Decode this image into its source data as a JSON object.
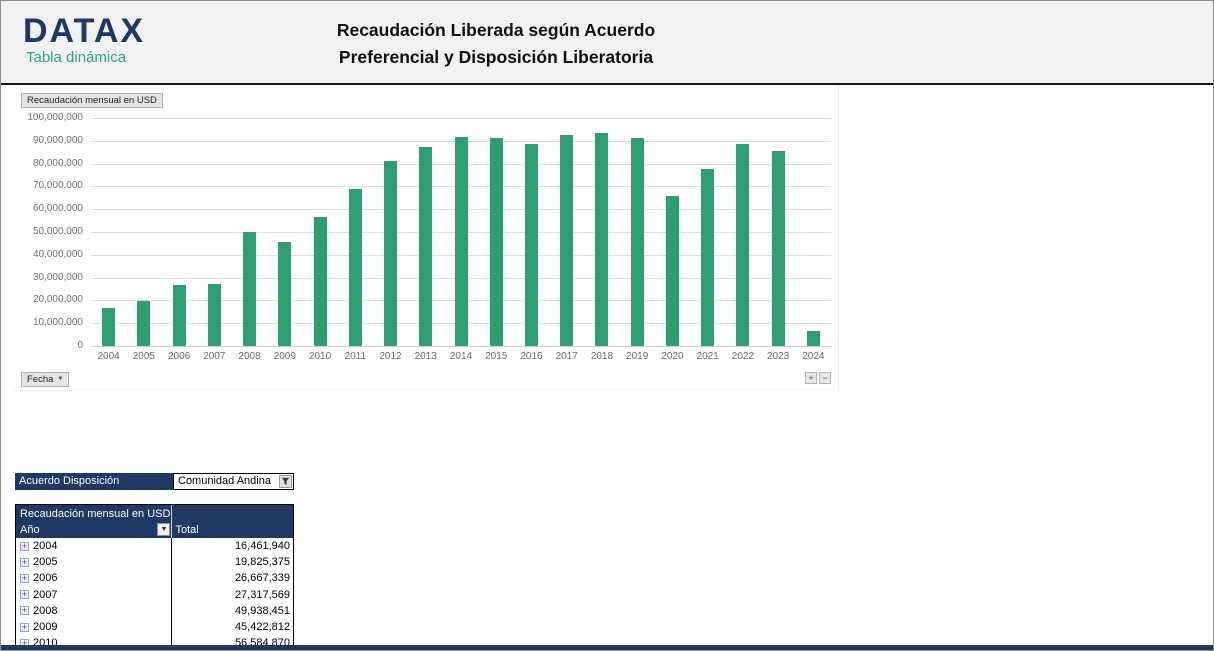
{
  "header": {
    "logo_text": "DATAX",
    "logo_subtitle": "Tabla dinámica",
    "title_line1": "Recaudación Liberada según Acuerdo",
    "title_line2": "Preferencial y Disposición Liberatoria"
  },
  "chart": {
    "series_field_label": "Recaudación mensual en USD",
    "axis_field_label": "Fecha",
    "expand_label": "+",
    "collapse_label": "−"
  },
  "chart_data": {
    "type": "bar",
    "title": "Recaudación Liberada según Acuerdo Preferencial y Disposición Liberatoria",
    "series_name": "Recaudación mensual en USD",
    "categories": [
      "2004",
      "2005",
      "2006",
      "2007",
      "2008",
      "2009",
      "2010",
      "2011",
      "2012",
      "2013",
      "2014",
      "2015",
      "2016",
      "2017",
      "2018",
      "2019",
      "2020",
      "2021",
      "2022",
      "2023",
      "2024"
    ],
    "values": [
      16461940,
      19825375,
      26667339,
      27317569,
      49938451,
      45422812,
      56584870,
      68900000,
      81000000,
      87100000,
      91800000,
      91400000,
      88400000,
      92400000,
      93500000,
      91300000,
      65600000,
      77500000,
      88600000,
      85700000,
      6500000
    ],
    "xlabel": "",
    "ylabel": "",
    "ylim": [
      0,
      100000000
    ],
    "ytick_labels": [
      "100,000,000",
      "90,000,000",
      "80,000,000",
      "70,000,000",
      "60,000,000",
      "50,000,000",
      "40,000,000",
      "30,000,000",
      "20,000,000",
      "10,000,000",
      "0"
    ],
    "grid": true,
    "legend_position": "none",
    "bar_color": "#2f9e71"
  },
  "filter": {
    "label": "Acuerdo Disposición",
    "value": "Comunidad Andina"
  },
  "pivot_table": {
    "title": "Recaudación mensual en USD",
    "row_header": "Año",
    "value_header": "Total",
    "rows": [
      {
        "year": "2004",
        "total": "16,461,940"
      },
      {
        "year": "2005",
        "total": "19,825,375"
      },
      {
        "year": "2006",
        "total": "26,667,339"
      },
      {
        "year": "2007",
        "total": "27,317,569"
      },
      {
        "year": "2008",
        "total": "49,938,451"
      },
      {
        "year": "2009",
        "total": "45,422,812"
      },
      {
        "year": "2010",
        "total": "56,584,870"
      }
    ]
  },
  "icons": {
    "dropdown_glyph": "▼",
    "expand_glyph": "+"
  },
  "colors": {
    "navy": "#1f3864",
    "teal": "#2fa18b",
    "bar_green": "#2f9e71",
    "header_band": "#f2f2f2"
  }
}
